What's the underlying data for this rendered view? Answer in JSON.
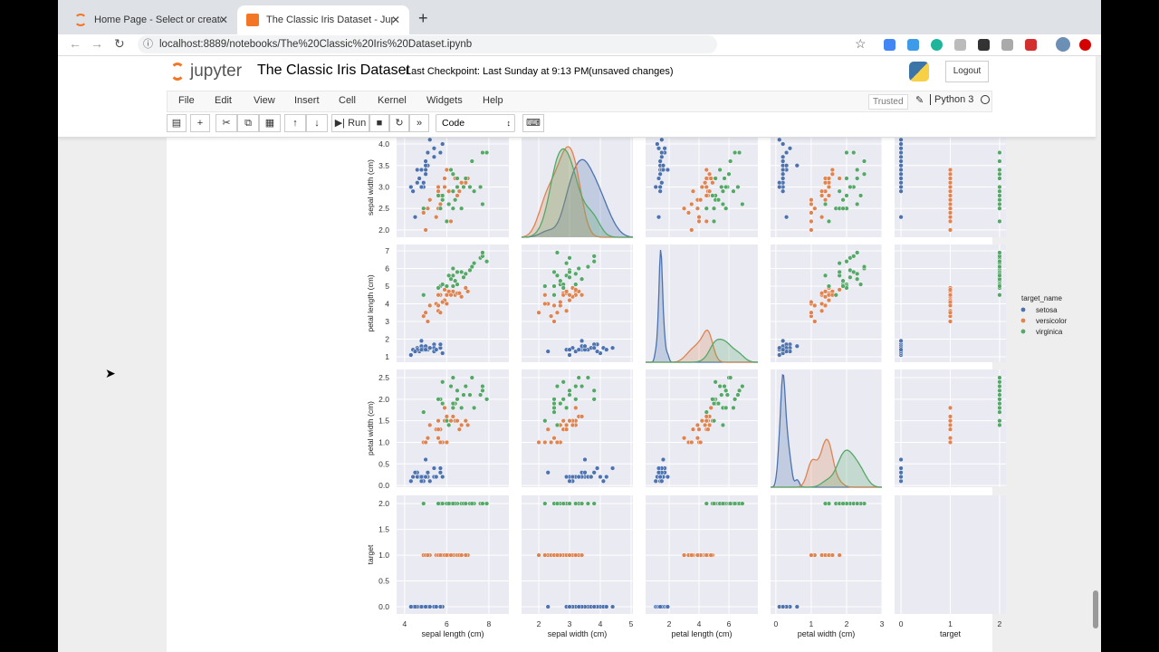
{
  "browser": {
    "tabs": [
      {
        "label": "Home Page - Select or create a",
        "active": false
      },
      {
        "label": "The Classic Iris Dataset - Jupy",
        "active": true
      }
    ],
    "url": "localhost:8889/notebooks/The%20Classic%20Iris%20Dataset.ipynb"
  },
  "notebook": {
    "logo_text": "jupyter",
    "title": "The Classic Iris Dataset",
    "checkpoint": "Last Checkpoint: Last Sunday at 9:13 PM",
    "unsaved": "(unsaved changes)",
    "logout": "Logout",
    "menu": [
      "File",
      "Edit",
      "View",
      "Insert",
      "Cell",
      "Kernel",
      "Widgets",
      "Help"
    ],
    "trusted": "Trusted",
    "kernel": "Python 3",
    "toolbar": {
      "run": "Run",
      "cell_type": "Code"
    }
  },
  "chart_data": {
    "type": "scatter",
    "kind": "pairplot",
    "features": [
      "sepal length (cm)",
      "sepal width (cm)",
      "petal length (cm)",
      "petal width (cm)",
      "target"
    ],
    "visible_rows": [
      "sepal width (cm)",
      "petal length (cm)",
      "petal width (cm)",
      "target"
    ],
    "diagonal": "kde",
    "x_ticks": [
      [
        "4",
        "6",
        "8"
      ],
      [
        "2",
        "3",
        "4",
        "5"
      ],
      [
        "2",
        "4",
        "6"
      ],
      [
        "0",
        "1",
        "2",
        "3"
      ],
      [
        "0",
        "1",
        "2"
      ]
    ],
    "y_ticks": {
      "sepal width (cm)": [
        "2.0",
        "2.5",
        "3.0",
        "3.5",
        "4.0"
      ],
      "petal length (cm)": [
        "1",
        "2",
        "3",
        "4",
        "5",
        "6",
        "7"
      ],
      "petal width (cm)": [
        "0.0",
        "0.5",
        "1.0",
        "1.5",
        "2.0",
        "2.5"
      ],
      "target": [
        "0.0",
        "0.5",
        "1.0",
        "1.5",
        "2.0"
      ]
    },
    "legend": {
      "title": "target_name",
      "placement": "right"
    },
    "background": "#eaeaf2",
    "grid": true,
    "series": [
      {
        "name": "setosa",
        "color": "#4c72b0",
        "target": 0,
        "points": [
          [
            5.1,
            3.5,
            1.4,
            0.2
          ],
          [
            4.9,
            3.0,
            1.4,
            0.2
          ],
          [
            4.7,
            3.2,
            1.3,
            0.2
          ],
          [
            4.6,
            3.1,
            1.5,
            0.2
          ],
          [
            5.0,
            3.6,
            1.4,
            0.2
          ],
          [
            5.4,
            3.9,
            1.7,
            0.4
          ],
          [
            4.6,
            3.4,
            1.4,
            0.3
          ],
          [
            5.0,
            3.4,
            1.5,
            0.2
          ],
          [
            4.4,
            2.9,
            1.4,
            0.2
          ],
          [
            4.9,
            3.1,
            1.5,
            0.1
          ],
          [
            5.4,
            3.7,
            1.5,
            0.2
          ],
          [
            4.8,
            3.4,
            1.6,
            0.2
          ],
          [
            4.8,
            3.0,
            1.4,
            0.1
          ],
          [
            4.3,
            3.0,
            1.1,
            0.1
          ],
          [
            5.8,
            4.0,
            1.2,
            0.2
          ],
          [
            5.7,
            4.4,
            1.5,
            0.4
          ],
          [
            5.4,
            3.9,
            1.3,
            0.4
          ],
          [
            5.1,
            3.5,
            1.4,
            0.3
          ],
          [
            5.7,
            3.8,
            1.7,
            0.3
          ],
          [
            5.1,
            3.8,
            1.5,
            0.3
          ],
          [
            4.5,
            2.3,
            1.3,
            0.3
          ],
          [
            5.0,
            3.5,
            1.6,
            0.6
          ],
          [
            5.2,
            4.1,
            1.5,
            0.1
          ],
          [
            5.5,
            4.2,
            1.4,
            0.2
          ],
          [
            4.8,
            3.4,
            1.9,
            0.2
          ],
          [
            5.0,
            3.3,
            1.4,
            0.2
          ]
        ]
      },
      {
        "name": "versicolor",
        "color": "#dd8452",
        "target": 1,
        "points": [
          [
            7.0,
            3.2,
            4.7,
            1.4
          ],
          [
            6.4,
            3.2,
            4.5,
            1.5
          ],
          [
            6.9,
            3.1,
            4.9,
            1.5
          ],
          [
            5.5,
            2.3,
            4.0,
            1.3
          ],
          [
            6.5,
            2.8,
            4.6,
            1.5
          ],
          [
            5.7,
            2.8,
            4.5,
            1.3
          ],
          [
            6.3,
            3.3,
            4.7,
            1.6
          ],
          [
            4.9,
            2.4,
            3.3,
            1.0
          ],
          [
            6.6,
            2.9,
            4.6,
            1.3
          ],
          [
            5.2,
            2.7,
            3.9,
            1.4
          ],
          [
            5.0,
            2.0,
            3.5,
            1.0
          ],
          [
            5.9,
            3.0,
            4.2,
            1.5
          ],
          [
            6.0,
            2.2,
            4.0,
            1.0
          ],
          [
            6.1,
            2.9,
            4.7,
            1.4
          ],
          [
            5.6,
            2.9,
            3.6,
            1.3
          ],
          [
            6.7,
            3.1,
            4.4,
            1.4
          ],
          [
            5.6,
            3.0,
            4.5,
            1.5
          ],
          [
            5.8,
            2.7,
            4.1,
            1.0
          ],
          [
            6.2,
            2.2,
            4.5,
            1.5
          ],
          [
            5.6,
            2.5,
            3.9,
            1.1
          ],
          [
            5.9,
            3.2,
            4.8,
            1.8
          ],
          [
            6.0,
            3.4,
            4.5,
            1.6
          ],
          [
            5.1,
            2.5,
            3.0,
            1.1
          ],
          [
            5.7,
            2.6,
            3.5,
            1.0
          ]
        ]
      },
      {
        "name": "virginica",
        "color": "#55a868",
        "target": 2,
        "points": [
          [
            6.3,
            3.3,
            6.0,
            2.5
          ],
          [
            5.8,
            2.7,
            5.1,
            1.9
          ],
          [
            7.1,
            3.0,
            5.9,
            2.1
          ],
          [
            6.3,
            2.9,
            5.6,
            1.8
          ],
          [
            6.5,
            3.0,
            5.8,
            2.2
          ],
          [
            7.6,
            3.0,
            6.6,
            2.1
          ],
          [
            4.9,
            2.5,
            4.5,
            1.7
          ],
          [
            7.3,
            2.9,
            6.3,
            1.8
          ],
          [
            6.7,
            2.5,
            5.8,
            1.8
          ],
          [
            7.2,
            3.6,
            6.1,
            2.5
          ],
          [
            6.5,
            3.2,
            5.1,
            2.0
          ],
          [
            6.4,
            2.7,
            5.3,
            1.9
          ],
          [
            6.8,
            3.0,
            5.5,
            2.1
          ],
          [
            5.7,
            2.5,
            5.0,
            2.0
          ],
          [
            5.8,
            2.8,
            5.1,
            2.4
          ],
          [
            7.7,
            3.8,
            6.7,
            2.2
          ],
          [
            7.7,
            2.6,
            6.9,
            2.3
          ],
          [
            6.0,
            2.2,
            5.0,
            1.5
          ],
          [
            6.9,
            3.2,
            5.7,
            2.3
          ],
          [
            5.6,
            2.8,
            4.9,
            2.0
          ],
          [
            7.9,
            3.8,
            6.4,
            2.0
          ],
          [
            6.2,
            3.4,
            5.4,
            2.3
          ],
          [
            6.3,
            2.5,
            5.0,
            1.9
          ],
          [
            6.1,
            2.6,
            5.6,
            1.4
          ]
        ]
      }
    ]
  }
}
